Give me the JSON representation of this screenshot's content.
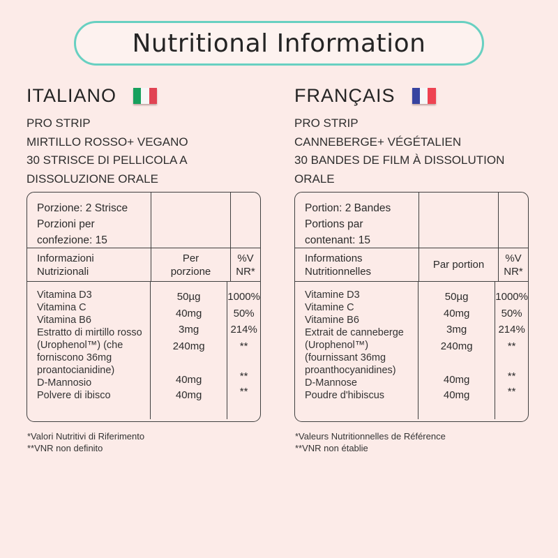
{
  "title": "Nutritional Information",
  "colors": {
    "background": "#fcebe8",
    "accent_teal": "#68d0c1",
    "pill_fill": "#fdf2ef",
    "table_border": "#3f3f3f",
    "text": "#2b2b2b",
    "italy_flag": [
      "#17a05d",
      "#f7f7f7",
      "#e14353"
    ],
    "france_flag": [
      "#3743a0",
      "#f7f7f7",
      "#ee4352"
    ]
  },
  "sections": [
    {
      "heading": "ITALIANO",
      "flag": "italy-flag",
      "product_lines": [
        "PRO STRIP",
        "MIRTILLO ROSSO+ VEGANO",
        "30 STRISCE DI PELLICOLA A",
        "DISSOLUZIONE ORALE"
      ],
      "table": {
        "serving_lines": [
          "Porzione: 2 Strisce",
          "Porzioni per",
          "confezione: 15"
        ],
        "header": {
          "info": "Informazioni Nutrizionali",
          "per_serving": "Per\nporzione",
          "pct": "%V\nNR*"
        },
        "nutrients": [
          {
            "name": "Vitamina D3",
            "amount": "50µg",
            "pct": "1000%"
          },
          {
            "name": "Vitamina C",
            "amount": "40mg",
            "pct": "50%"
          },
          {
            "name": "Vitamina B6",
            "amount": "3mg",
            "pct": "214%"
          },
          {
            "name": "Estratto di mirtillo rosso (Urophenol™) (che forniscono 36mg proantocianidine)",
            "amount": "240mg",
            "pct": "**"
          },
          {
            "name": "D-Mannosio",
            "amount": "40mg",
            "pct": "**"
          },
          {
            "name": "Polvere di ibisco",
            "amount": "40mg",
            "pct": "**"
          }
        ]
      },
      "footnotes": [
        "*Valori Nutritivi di Riferimento",
        "**VNR non definito"
      ]
    },
    {
      "heading": "FRANÇAIS",
      "flag": "france-flag",
      "product_lines": [
        "PRO STRIP",
        "CANNEBERGE+ VÉGÉTALIEN",
        "30 BANDES DE FILM À DISSOLUTION",
        "ORALE"
      ],
      "table": {
        "serving_lines": [
          "Portion: 2 Bandes",
          "Portions par",
          "contenant: 15"
        ],
        "header": {
          "info": "Informations Nutritionnelles",
          "per_serving": "Par portion",
          "pct": "%V\nNR*"
        },
        "nutrients": [
          {
            "name": "Vitamine D3",
            "amount": "50µg",
            "pct": "1000%"
          },
          {
            "name": "Vitamine C",
            "amount": "40mg",
            "pct": "50%"
          },
          {
            "name": "Vitamine B6",
            "amount": "3mg",
            "pct": "214%"
          },
          {
            "name": "Extrait de canneberge (Urophenol™) (fournissant 36mg proanthocyanidines)",
            "amount": "240mg",
            "pct": "**"
          },
          {
            "name": "D-Mannose",
            "amount": "40mg",
            "pct": "**"
          },
          {
            "name": "Poudre d'hibiscus",
            "amount": "40mg",
            "pct": "**"
          }
        ]
      },
      "footnotes": [
        "*Valeurs Nutritionnelles de Référence",
        "**VNR non établie"
      ]
    }
  ]
}
